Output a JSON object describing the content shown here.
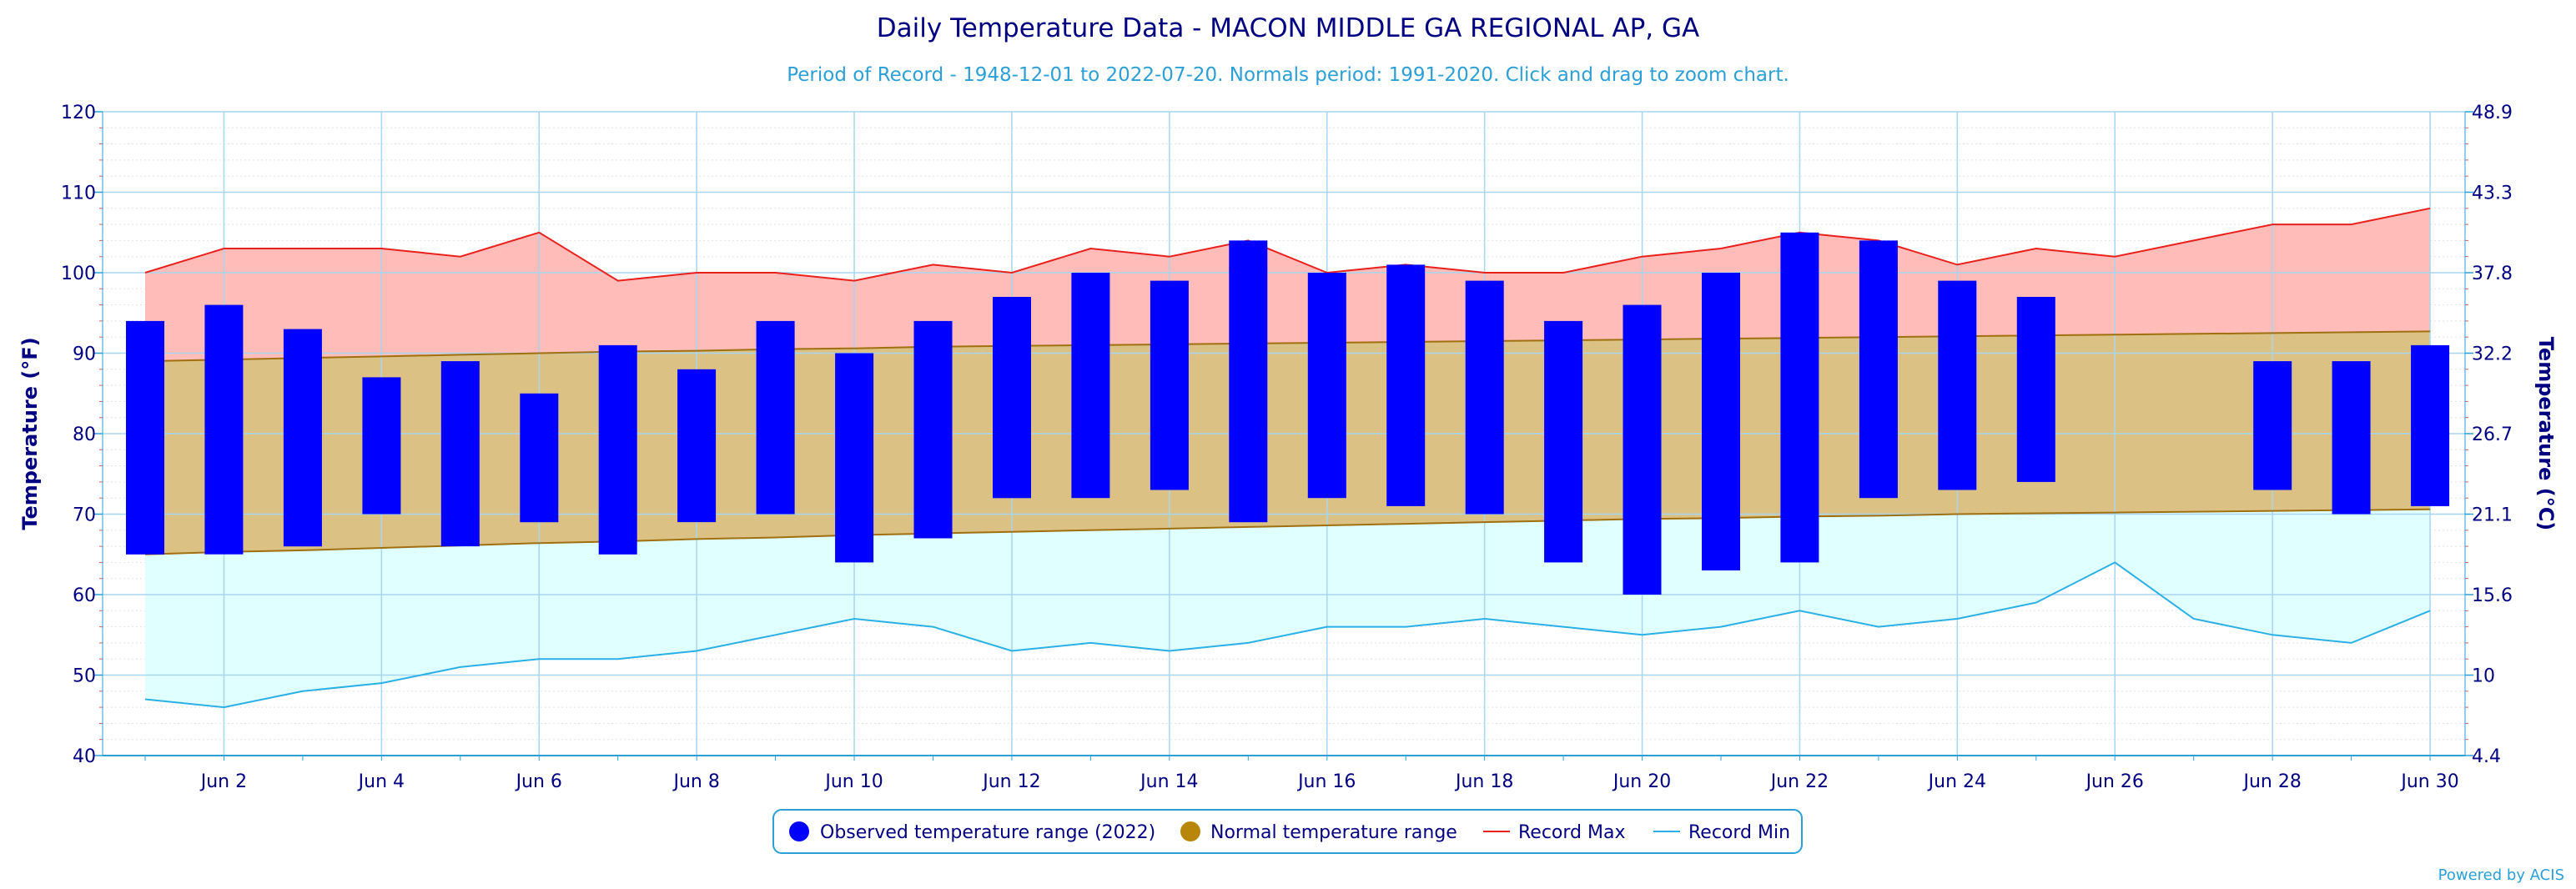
{
  "chart_data": {
    "type": "bar",
    "title": "Daily Temperature Data - MACON MIDDLE GA REGIONAL AP, GA",
    "subtitle": "Period of Record - 1948-12-01 to 2022-07-20. Normals period: 1991-2020. Click and drag to zoom chart.",
    "ylabel": "Temperature (°F)",
    "y2label": "Temperature (°C)",
    "ylim": [
      40,
      120
    ],
    "y_ticks": [
      "40",
      "50",
      "60",
      "70",
      "80",
      "90",
      "100",
      "110",
      "120"
    ],
    "y2_ticks": [
      "4.4",
      "10",
      "15.6",
      "21.1",
      "26.7",
      "32.2",
      "37.8",
      "43.3",
      "48.9"
    ],
    "x_days": [
      1,
      2,
      3,
      4,
      5,
      6,
      7,
      8,
      9,
      10,
      11,
      12,
      13,
      14,
      15,
      16,
      17,
      18,
      19,
      20,
      21,
      22,
      23,
      24,
      25,
      26,
      27,
      28,
      29,
      30
    ],
    "x_tick_days": [
      2,
      4,
      6,
      8,
      10,
      12,
      14,
      16,
      18,
      20,
      22,
      24,
      26,
      28,
      30
    ],
    "x_tick_labels": [
      "Jun 2",
      "Jun 4",
      "Jun 6",
      "Jun 8",
      "Jun 10",
      "Jun 12",
      "Jun 14",
      "Jun 16",
      "Jun 18",
      "Jun 20",
      "Jun 22",
      "Jun 24",
      "Jun 26",
      "Jun 28",
      "Jun 30"
    ],
    "grid": true,
    "legend_position": "bottom-center",
    "series": [
      {
        "name": "Observed temperature range (2022)",
        "color": "#0000ff",
        "high": [
          94,
          96,
          93,
          87,
          89,
          85,
          91,
          88,
          94,
          90,
          94,
          97,
          100,
          99,
          104,
          100,
          101,
          99,
          94,
          96,
          100,
          105,
          104,
          99,
          97,
          null,
          null,
          89,
          89,
          91
        ],
        "low": [
          65,
          65,
          66,
          70,
          66,
          69,
          65,
          69,
          70,
          64,
          67,
          72,
          72,
          73,
          69,
          72,
          71,
          70,
          64,
          60,
          63,
          64,
          72,
          73,
          74,
          null,
          null,
          73,
          70,
          71
        ]
      },
      {
        "name": "Normal temperature range",
        "color": "#b8860b",
        "high": [
          89,
          89.2,
          89.4,
          89.6,
          89.8,
          90,
          90.2,
          90.3,
          90.5,
          90.6,
          90.8,
          90.9,
          91,
          91.1,
          91.2,
          91.3,
          91.4,
          91.5,
          91.6,
          91.7,
          91.8,
          91.9,
          92,
          92.1,
          92.2,
          92.3,
          92.4,
          92.5,
          92.6,
          92.7
        ],
        "low": [
          65,
          65.3,
          65.5,
          65.8,
          66.1,
          66.4,
          66.6,
          66.9,
          67.1,
          67.4,
          67.6,
          67.8,
          68,
          68.2,
          68.4,
          68.6,
          68.8,
          69,
          69.2,
          69.4,
          69.5,
          69.7,
          69.8,
          70,
          70.1,
          70.2,
          70.3,
          70.4,
          70.5,
          70.6
        ]
      },
      {
        "name": "Record Max",
        "color": "#e8211d",
        "values": [
          100,
          103,
          103,
          103,
          102,
          105,
          99,
          100,
          100,
          99,
          101,
          100,
          103,
          102,
          104,
          100,
          101,
          100,
          100,
          102,
          103,
          105,
          104,
          101,
          103,
          102,
          104,
          106,
          106,
          108
        ]
      },
      {
        "name": "Record Min",
        "color": "#2bb0e6",
        "values": [
          47,
          46,
          48,
          49,
          51,
          52,
          52,
          53,
          55,
          57,
          56,
          53,
          54,
          53,
          54,
          56,
          56,
          57,
          56,
          55,
          56,
          58,
          56,
          57,
          59,
          64,
          57,
          55,
          54,
          58
        ]
      }
    ]
  },
  "credit": "Powered by ACIS",
  "colors": {
    "record_fill": "#ffbcb8",
    "normal_fill": "#dbc184",
    "low_fill": "#e0ffff",
    "grid": "#a7d6f0",
    "axis": "#2b9fd6",
    "text": "#000080"
  },
  "legend_icons": [
    "circle-icon",
    "circle-icon",
    "line-icon",
    "line-icon"
  ]
}
